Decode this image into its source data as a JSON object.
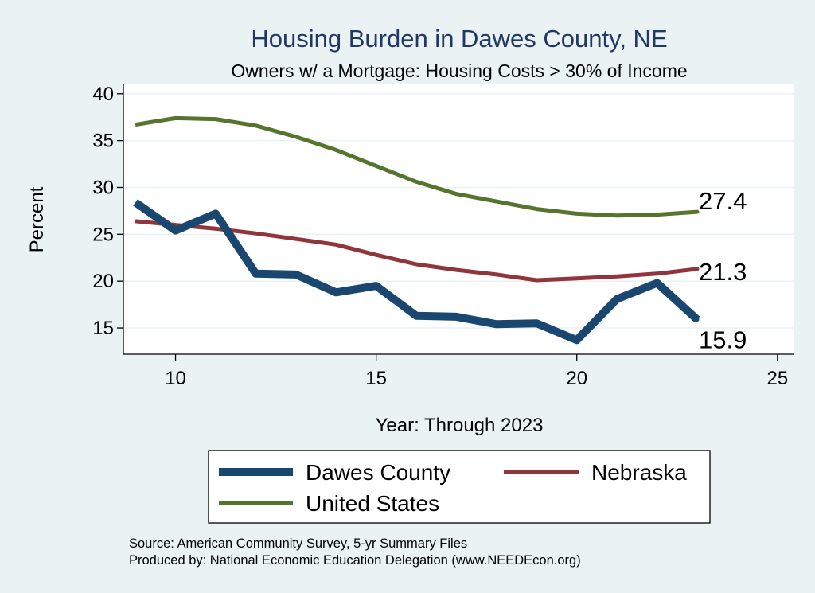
{
  "chart_data": {
    "type": "line",
    "title": "Housing Burden in Dawes County, NE",
    "subtitle": "Owners w/ a Mortgage: Housing Costs > 30% of Income",
    "xlabel": "Year: Through 2023",
    "ylabel": "Percent",
    "xlim": [
      8.7,
      25.4
    ],
    "ylim": [
      12.2,
      41.0
    ],
    "xticks": [
      10,
      15,
      20,
      25
    ],
    "yticks": [
      15,
      20,
      25,
      30,
      35,
      40
    ],
    "x": [
      9,
      10,
      11,
      12,
      13,
      14,
      15,
      16,
      17,
      18,
      19,
      20,
      21,
      22,
      23
    ],
    "series": [
      {
        "name": "Dawes County",
        "color": "#1a476f",
        "values": [
          28.4,
          25.4,
          27.2,
          20.8,
          20.7,
          18.8,
          19.5,
          16.3,
          16.2,
          15.4,
          15.5,
          13.7,
          18.1,
          19.8,
          15.9
        ],
        "end_label": "15.9"
      },
      {
        "name": "Nebraska",
        "color": "#90353b",
        "values": [
          26.4,
          26.0,
          25.6,
          25.1,
          24.5,
          23.9,
          22.8,
          21.8,
          21.2,
          20.7,
          20.1,
          20.3,
          20.5,
          20.8,
          21.3
        ],
        "end_label": "21.3"
      },
      {
        "name": "United States",
        "color": "#55752f",
        "values": [
          36.7,
          37.4,
          37.3,
          36.6,
          35.4,
          34.0,
          32.3,
          30.6,
          29.3,
          28.5,
          27.7,
          27.2,
          27.0,
          27.1,
          27.4
        ],
        "end_label": "27.4"
      }
    ],
    "legend": {
      "position": "bottom",
      "entries": [
        "Dawes County",
        "Nebraska",
        "United States"
      ]
    },
    "notes": [
      "Source: American Community Survey, 5-yr Summary Files",
      "Produced by: National Economic Education Delegation (www.NEEDEcon.org)"
    ],
    "grid": true
  }
}
